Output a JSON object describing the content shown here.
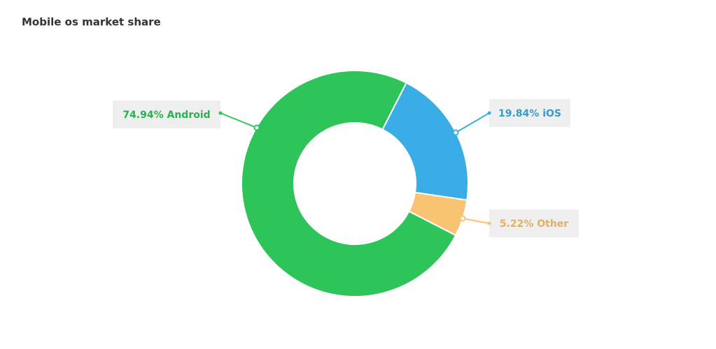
{
  "chart_data": {
    "type": "donut",
    "title": "Mobile os market share",
    "categories": [
      "iOS",
      "Other",
      "Android"
    ],
    "values": [
      19.84,
      5.22,
      74.94
    ],
    "value_labels": [
      "19.84%",
      "5.22%",
      "74.94%"
    ],
    "colors": [
      "#3aade6",
      "#f8c471",
      "#2ec45a"
    ]
  }
}
